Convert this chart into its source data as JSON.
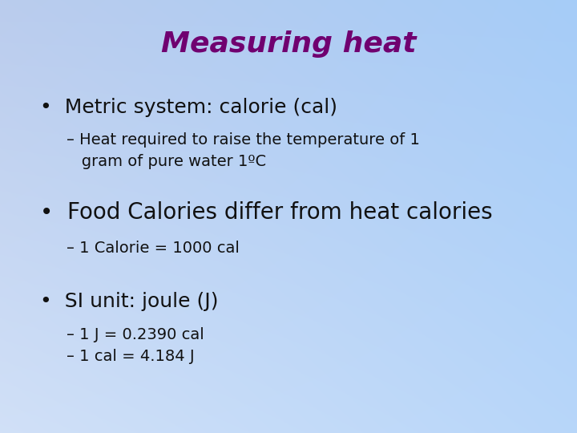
{
  "title": "Measuring heat",
  "title_color": "#700070",
  "title_fontsize": 26,
  "bullet1_text": "•  Metric system: calorie (cal)",
  "bullet1_fontsize": 18,
  "sub1a_line1": "– Heat required to raise the temperature of 1",
  "sub1a_line2": "   gram of pure water 1ºC",
  "sub1_fontsize": 14,
  "bullet2_text": "•  Food Calories differ from heat calories",
  "bullet2_fontsize": 20,
  "sub2a_text": "– 1 Calorie = 1000 cal",
  "sub2_fontsize": 14,
  "bullet3_text": "•  SI unit: joule (J)",
  "bullet3_fontsize": 18,
  "sub3a_text": "– 1 J = 0.2390 cal",
  "sub3b_text": "– 1 cal = 4.184 J",
  "sub3_fontsize": 14,
  "text_color": "#111111",
  "grad_tl": [
    0.73,
    0.8,
    0.93
  ],
  "grad_tr": [
    0.65,
    0.8,
    0.97
  ],
  "grad_bl": [
    0.82,
    0.88,
    0.97
  ],
  "grad_br": [
    0.72,
    0.84,
    0.98
  ]
}
